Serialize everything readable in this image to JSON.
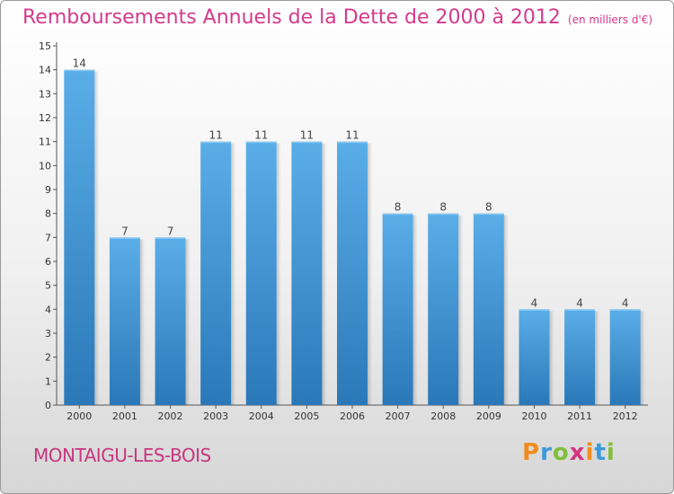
{
  "header": {
    "title": "Remboursements Annuels de la Dette de 2000 à 2012",
    "unit": "(en milliers d'€)"
  },
  "footer": {
    "town": "MONTAIGU-LES-BOIS",
    "logo": "Proxiti"
  },
  "colors": {
    "title": "#d43a8c",
    "bar_top": "#5aaee8",
    "bar_bottom": "#2a78b8"
  },
  "chart_data": {
    "type": "bar",
    "title": "Remboursements Annuels de la Dette de 2000 à 2012",
    "categories": [
      "2000",
      "2001",
      "2002",
      "2003",
      "2004",
      "2005",
      "2006",
      "2007",
      "2008",
      "2009",
      "2010",
      "2011",
      "2012"
    ],
    "values": [
      14,
      7,
      7,
      11,
      11,
      11,
      11,
      8,
      8,
      8,
      4,
      4,
      4
    ],
    "ylim": [
      0,
      15
    ],
    "yticks": [
      0,
      1,
      2,
      3,
      4,
      5,
      6,
      7,
      8,
      9,
      10,
      11,
      12,
      13,
      14,
      15
    ],
    "grid": false,
    "xlabel": "",
    "ylabel": ""
  }
}
